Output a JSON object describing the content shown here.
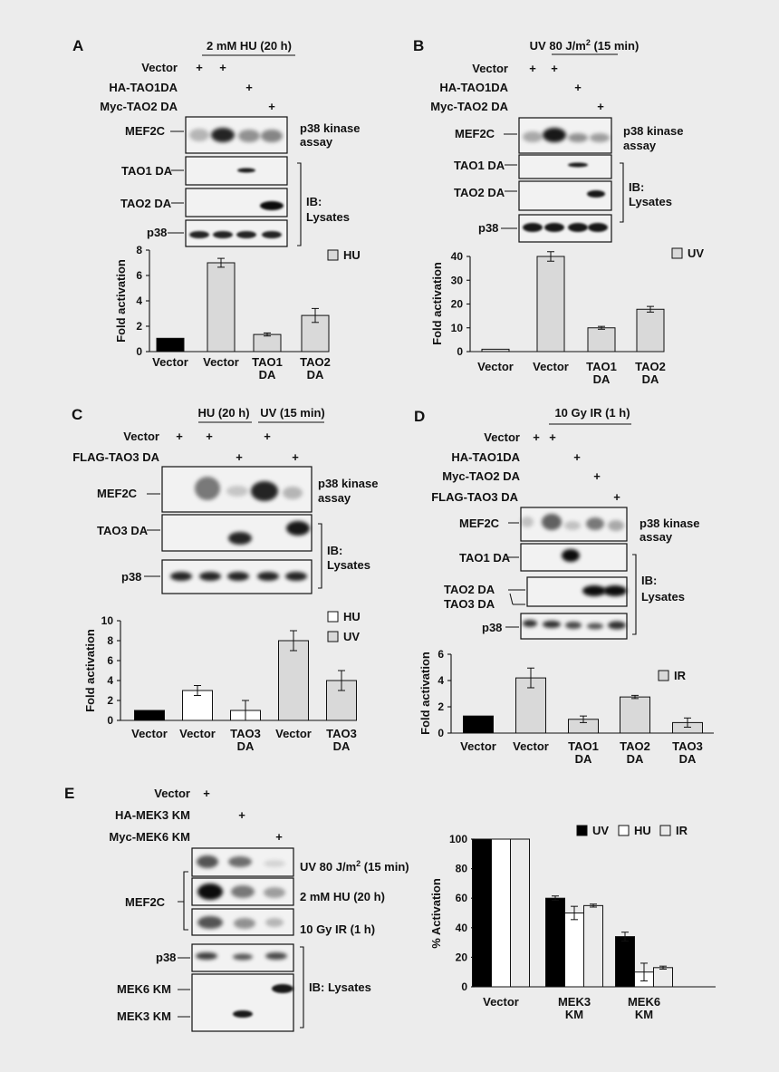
{
  "panels": {
    "A": {
      "letter": "A",
      "treatment": "2 mM HU  (20 h)",
      "rows": [
        {
          "label": "Vector",
          "marks": [
            "+",
            "+",
            "",
            ""
          ]
        },
        {
          "label": "HA-TAO1DA",
          "marks": [
            "",
            "",
            "+",
            ""
          ]
        },
        {
          "label": "Myc-TAO2 DA",
          "marks": [
            "",
            "",
            "",
            "+"
          ]
        }
      ],
      "blot_labels": {
        "mef2c": "MEF2C",
        "tao1": "TAO1 DA",
        "tao2": "TAO2 DA",
        "p38": "p38"
      },
      "assay_label": [
        "p38 kinase",
        "assay"
      ],
      "ib_label": [
        "IB:",
        "Lysates"
      ]
    },
    "B": {
      "letter": "B",
      "treatment_main": "UV 80 J/m",
      "treatment_sup": "2",
      "treatment_tail": " (15 min)",
      "rows": [
        {
          "label": "Vector",
          "marks": [
            "+",
            "+",
            "",
            ""
          ]
        },
        {
          "label": "HA-TAO1DA",
          "marks": [
            "",
            "",
            "+",
            ""
          ]
        },
        {
          "label": "Myc-TAO2 DA",
          "marks": [
            "",
            "",
            "",
            "+"
          ]
        }
      ],
      "blot_labels": {
        "mef2c": "MEF2C",
        "tao1": "TAO1 DA",
        "tao2": "TAO2 DA",
        "p38": "p38"
      },
      "assay_label": [
        "p38 kinase",
        "assay"
      ],
      "ib_label": [
        "IB:",
        "Lysates"
      ]
    },
    "C": {
      "letter": "C",
      "treatment_hu": "HU (20 h)",
      "treatment_uv": "UV (15 min)",
      "rows": [
        {
          "label": "Vector",
          "marks": [
            "+",
            "+",
            "",
            "+",
            ""
          ]
        },
        {
          "label": "FLAG-TAO3 DA",
          "marks": [
            "",
            "",
            "+",
            "",
            "+"
          ]
        }
      ],
      "blot_labels": {
        "mef2c": "MEF2C",
        "tao3": "TAO3 DA",
        "p38": "p38"
      },
      "assay_label": [
        "p38 kinase",
        "assay"
      ],
      "ib_label": [
        "IB:",
        "Lysates"
      ]
    },
    "D": {
      "letter": "D",
      "treatment": "10 Gy IR (1 h)",
      "rows": [
        {
          "label": "Vector",
          "marks": [
            "+",
            "+",
            "",
            "",
            ""
          ]
        },
        {
          "label": "HA-TAO1DA",
          "marks": [
            "",
            "",
            "+",
            "",
            ""
          ]
        },
        {
          "label": "Myc-TAO2 DA",
          "marks": [
            "",
            "",
            "",
            "+",
            ""
          ]
        },
        {
          "label": "FLAG-TAO3 DA",
          "marks": [
            "",
            "",
            "",
            "",
            "+"
          ]
        }
      ],
      "blot_labels": {
        "mef2c": "MEF2C",
        "tao1": "TAO1 DA",
        "tao2": "TAO2 DA",
        "tao3": "TAO3 DA",
        "p38": "p38"
      },
      "assay_label": [
        "p38 kinase",
        "assay"
      ],
      "ib_label": [
        "IB:",
        "Lysates"
      ]
    },
    "E": {
      "letter": "E",
      "rows": [
        {
          "label": "Vector",
          "marks": [
            "+",
            "",
            ""
          ]
        },
        {
          "label": "HA-MEK3 KM",
          "marks": [
            "",
            "+",
            ""
          ]
        },
        {
          "label": "Myc-MEK6 KM",
          "marks": [
            "",
            "",
            "+"
          ]
        }
      ],
      "mef2c_label": "MEF2C",
      "uv_main": "UV 80 J/m",
      "uv_sup": "2",
      "uv_tail": " (15 min)",
      "hu_label": "2 mM HU (20 h)",
      "ir_label": "10 Gy IR (1 h)",
      "p38_label": "p38",
      "mek6_label": "MEK6 KM",
      "mek3_label": "MEK3 KM",
      "ib_label": "IB: Lysates"
    }
  },
  "chart_data": [
    {
      "id": "A",
      "type": "bar",
      "categories": [
        "Vector",
        "Vector",
        "TAO1 DA",
        "TAO2 DA"
      ],
      "category_lines": [
        [
          "Vector"
        ],
        [
          "Vector"
        ],
        [
          "TAO1",
          "DA"
        ],
        [
          "TAO2",
          "DA"
        ]
      ],
      "values": [
        1.05,
        7.0,
        1.35,
        2.85
      ],
      "errors": [
        0.0,
        0.35,
        0.12,
        0.55
      ],
      "colors": [
        "#000000",
        "#d9d9d9",
        "#d9d9d9",
        "#d9d9d9"
      ],
      "ylabel": "Fold activation",
      "ylim": [
        0,
        8
      ],
      "yticks": [
        0,
        2,
        4,
        6,
        8
      ],
      "legend": [
        {
          "label": "HU",
          "color": "#d9d9d9"
        }
      ]
    },
    {
      "id": "B",
      "type": "bar",
      "categories": [
        "Vector",
        "Vector",
        "TAO1 DA",
        "TAO2 DA"
      ],
      "category_lines": [
        [
          "Vector"
        ],
        [
          "Vector"
        ],
        [
          "TAO1",
          "DA"
        ],
        [
          "TAO2",
          "DA"
        ]
      ],
      "values": [
        1.0,
        40.0,
        10.0,
        17.8
      ],
      "errors": [
        0.0,
        2.0,
        0.6,
        1.2
      ],
      "colors": [
        "#d9d9d9",
        "#d9d9d9",
        "#d9d9d9",
        "#d9d9d9"
      ],
      "ylabel": "Fold activation",
      "ylim": [
        0,
        40
      ],
      "yticks": [
        0,
        10,
        20,
        30,
        40
      ],
      "legend": [
        {
          "label": "UV",
          "color": "#d9d9d9"
        }
      ]
    },
    {
      "id": "C",
      "type": "bar",
      "categories": [
        "Vector",
        "Vector",
        "TAO3 DA",
        "Vector",
        "TAO3 DA"
      ],
      "category_lines": [
        [
          "Vector"
        ],
        [
          "Vector"
        ],
        [
          "TAO3",
          "DA"
        ],
        [
          "Vector"
        ],
        [
          "TAO3",
          "DA"
        ]
      ],
      "values": [
        1.0,
        3.0,
        1.0,
        8.0,
        4.0
      ],
      "errors": [
        0.0,
        0.5,
        1.0,
        1.0,
        1.0
      ],
      "colors": [
        "#000000",
        "#ffffff",
        "#ffffff",
        "#d9d9d9",
        "#d9d9d9"
      ],
      "ylabel": "Fold activation",
      "ylim": [
        0,
        10
      ],
      "yticks": [
        0,
        2,
        4,
        6,
        8,
        10
      ],
      "legend": [
        {
          "label": "HU",
          "color": "#ffffff"
        },
        {
          "label": "UV",
          "color": "#d9d9d9"
        }
      ]
    },
    {
      "id": "D",
      "type": "bar",
      "categories": [
        "Vector",
        "Vector",
        "TAO1 DA",
        "TAO2 DA",
        "TAO3 DA"
      ],
      "category_lines": [
        [
          "Vector"
        ],
        [
          "Vector"
        ],
        [
          "TAO1",
          "DA"
        ],
        [
          "TAO2",
          "DA"
        ],
        [
          "TAO3",
          "DA"
        ]
      ],
      "values": [
        1.3,
        4.2,
        1.05,
        2.75,
        0.8
      ],
      "errors": [
        0.0,
        0.75,
        0.25,
        0.12,
        0.35
      ],
      "colors": [
        "#000000",
        "#d9d9d9",
        "#d9d9d9",
        "#d9d9d9",
        "#d9d9d9"
      ],
      "ylabel": "Fold activation",
      "ylim": [
        0,
        6
      ],
      "yticks": [
        0,
        2,
        4,
        6
      ],
      "legend": [
        {
          "label": "IR",
          "color": "#d9d9d9"
        }
      ]
    },
    {
      "id": "E",
      "type": "bar",
      "categories": [
        "Vector",
        "MEK3 KM",
        "MEK6 KM"
      ],
      "category_lines": [
        [
          "Vector"
        ],
        [
          "MEK3",
          "KM"
        ],
        [
          "MEK6",
          "KM"
        ]
      ],
      "series": [
        {
          "name": "UV",
          "color": "#000000",
          "values": [
            100,
            60,
            34
          ],
          "errors": [
            0,
            1.5,
            3
          ]
        },
        {
          "name": "HU",
          "color": "#ffffff",
          "values": [
            100,
            50,
            10
          ],
          "errors": [
            0,
            4.5,
            6
          ]
        },
        {
          "name": "IR",
          "color": "#ebebeb",
          "values": [
            100,
            55,
            13
          ],
          "errors": [
            0,
            1,
            1
          ]
        }
      ],
      "ylabel": "% Activation",
      "ylim": [
        0,
        100
      ],
      "yticks": [
        0,
        20,
        40,
        60,
        80,
        100
      ],
      "legend": [
        {
          "label": "UV",
          "color": "#000000"
        },
        {
          "label": "HU",
          "color": "#ffffff"
        },
        {
          "label": "IR",
          "color": "#ebebeb"
        }
      ]
    }
  ]
}
